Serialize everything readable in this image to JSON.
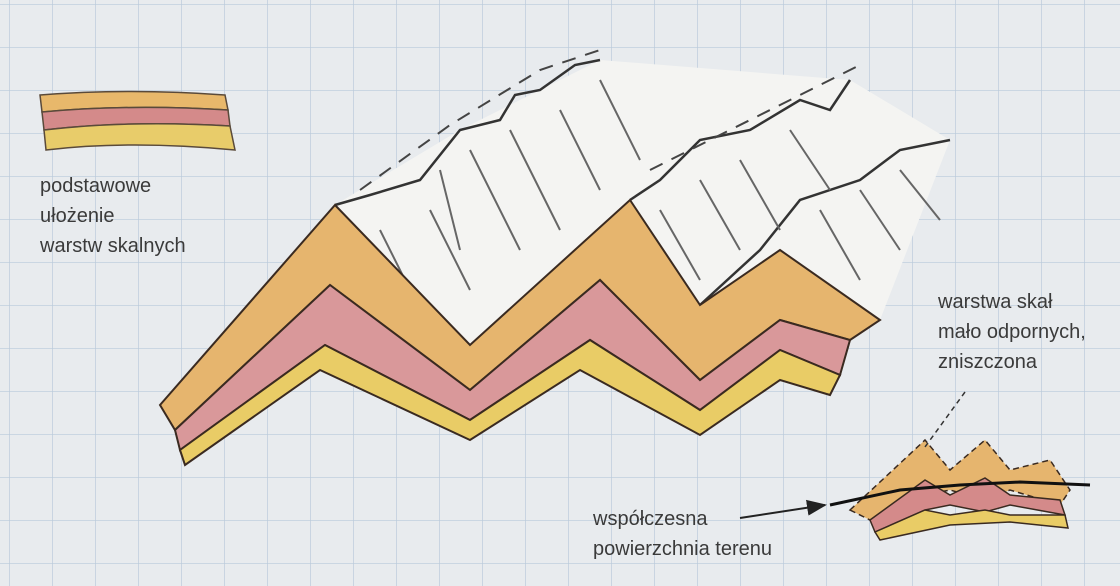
{
  "labels": [
    {
      "lines": [
        "podstawowe",
        "ułożenie",
        "warstw skalnych"
      ]
    },
    {
      "lines": [
        "warstwa skał",
        "mało odpornych,",
        "zniszczona"
      ]
    },
    {
      "lines": [
        "współczesna",
        "powierzchnia terenu"
      ]
    }
  ]
}
